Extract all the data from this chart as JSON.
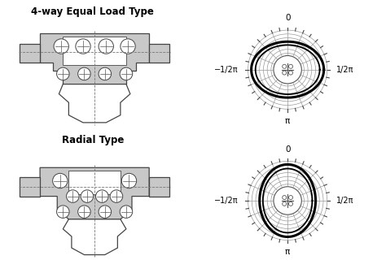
{
  "title_top": "4-way Equal Load Type",
  "title_bottom": "Radial Type",
  "bg_color": "#ffffff",
  "bearing_fill": "#c8c8c8",
  "axis_labels": {
    "top": "0",
    "bottom": "π",
    "left": "−1/2π",
    "right": "1/2π"
  },
  "font_size_title": 8.5,
  "font_size_label": 7.5
}
